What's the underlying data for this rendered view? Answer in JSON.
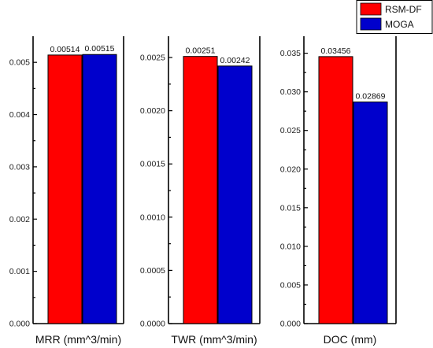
{
  "chart_data": {
    "type": "bar",
    "legend": {
      "placement": "top-right",
      "entries": [
        {
          "name": "RSM-DF",
          "color": "#ff0000"
        },
        {
          "name": "MOGA",
          "color": "#0000cc"
        }
      ]
    },
    "panels": [
      {
        "xlabel": "MRR (mm^3/min)",
        "ylim": [
          0,
          0.0055
        ],
        "ticks": [
          "0.000",
          "0.001",
          "0.002",
          "0.003",
          "0.004",
          "0.005"
        ],
        "series": [
          {
            "name": "RSM-DF",
            "value": 0.00514,
            "label": "0.00514"
          },
          {
            "name": "MOGA",
            "value": 0.00515,
            "label": "0.00515"
          }
        ]
      },
      {
        "xlabel": "TWR (mm^3/min)",
        "ylim": [
          0,
          0.0027
        ],
        "ticks": [
          "0.0000",
          "0.0005",
          "0.0010",
          "0.0015",
          "0.0020",
          "0.0025"
        ],
        "series": [
          {
            "name": "RSM-DF",
            "value": 0.00251,
            "label": "0.00251"
          },
          {
            "name": "MOGA",
            "value": 0.00242,
            "label": "0.00242"
          }
        ]
      },
      {
        "xlabel": "DOC (mm)",
        "ylim": [
          0,
          0.0372
        ],
        "ticks": [
          "0.000",
          "0.005",
          "0.010",
          "0.015",
          "0.020",
          "0.025",
          "0.030",
          "0.035"
        ],
        "series": [
          {
            "name": "RSM-DF",
            "value": 0.03456,
            "label": "0.03456"
          },
          {
            "name": "MOGA",
            "value": 0.02869,
            "label": "0.02869"
          }
        ]
      }
    ]
  }
}
